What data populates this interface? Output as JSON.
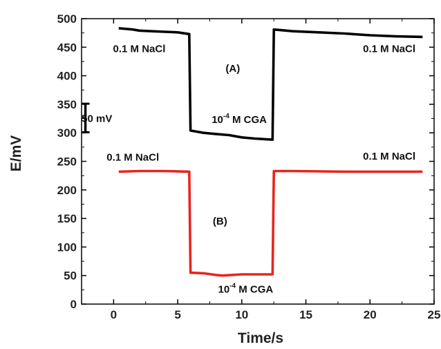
{
  "chart_data": {
    "type": "line",
    "xlabel": "Time/s",
    "ylabel": "E/mV",
    "xlim": [
      -2.5,
      25
    ],
    "ylim": [
      0,
      500
    ],
    "xticks": [
      0,
      5,
      10,
      15,
      20,
      25
    ],
    "yticks": [
      0,
      50,
      100,
      150,
      200,
      250,
      300,
      350,
      400,
      450,
      500
    ],
    "grid": false,
    "series": [
      {
        "color": "#000000",
        "points": [
          [
            0.5,
            483
          ],
          [
            1.5,
            481
          ],
          [
            2.0,
            479
          ],
          [
            3.0,
            478
          ],
          [
            4.0,
            477
          ],
          [
            5.0,
            476
          ],
          [
            5.9,
            473
          ],
          [
            6.0,
            304
          ],
          [
            7.0,
            300
          ],
          [
            8.0,
            298
          ],
          [
            9.0,
            296
          ],
          [
            10.0,
            292
          ],
          [
            11.0,
            290
          ],
          [
            12.4,
            288
          ],
          [
            12.5,
            481
          ],
          [
            14.0,
            478
          ],
          [
            16.0,
            476
          ],
          [
            18.0,
            474
          ],
          [
            20.0,
            471
          ],
          [
            22.0,
            469
          ],
          [
            24.0,
            468
          ]
        ]
      },
      {
        "color": "#e8251c",
        "points": [
          [
            0.5,
            232
          ],
          [
            2.0,
            233
          ],
          [
            4.0,
            233
          ],
          [
            5.9,
            232
          ],
          [
            6.0,
            55
          ],
          [
            7.0,
            54
          ],
          [
            8.0,
            51
          ],
          [
            8.5,
            50
          ],
          [
            10.0,
            52
          ],
          [
            12.4,
            52
          ],
          [
            12.5,
            233
          ],
          [
            14.0,
            233
          ],
          [
            18.0,
            232
          ],
          [
            24.0,
            232
          ]
        ]
      }
    ],
    "annotations": [
      {
        "text": "0.1 M NaCl",
        "x": 2.0,
        "y": 441
      },
      {
        "text": "0.1 M NaCl",
        "x": 21.5,
        "y": 441
      },
      {
        "text": "(A)",
        "x": 9.3,
        "y": 407
      },
      {
        "text": "10",
        "sup": "-4",
        "rest": " M CGA",
        "x": 9.8,
        "y": 317
      },
      {
        "text": "50 mV",
        "x": -1.3,
        "y": 319
      },
      {
        "text": "0.1 M NaCl",
        "x": 1.5,
        "y": 251
      },
      {
        "text": "0.1 M NaCl",
        "x": 21.5,
        "y": 253
      },
      {
        "text": "(B)",
        "x": 8.3,
        "y": 139
      },
      {
        "text": "10",
        "sup": "-4",
        "rest": " M CGA",
        "x": 10.3,
        "y": 20
      }
    ],
    "scale_bar": {
      "x": -2.2,
      "y_from": 301,
      "y_to": 351
    }
  }
}
